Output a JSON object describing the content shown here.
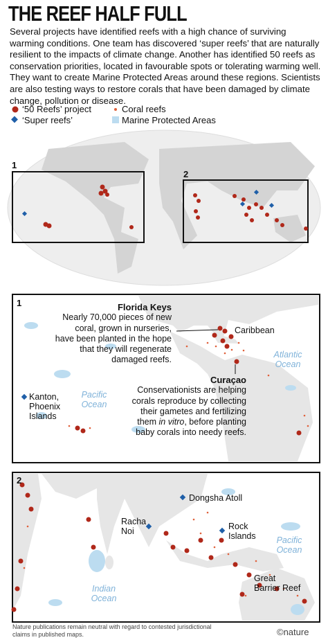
{
  "header": {
    "title": "THE REEF HALF FULL",
    "intro": "Several projects have identified reefs with a high chance of surviving warming conditions. One team has discovered ‘super reefs’ that are naturally resilient to the impacts of climate change. Another has identified 50 reefs as conservation priorities, located in favourable spots or tolerating warming well. They want to create Marine Protected Areas around these regions. Scientists are also testing ways to restore corals that have been damaged by climate change, pollution or disease."
  },
  "legend": {
    "items": [
      "‘50 Reefs’ project",
      "Coral reefs",
      "‘Super reefs’",
      "Marine Protected Areas"
    ]
  },
  "world_map": {
    "insets": [
      "1",
      "2"
    ]
  },
  "panel_1": {
    "number": "1",
    "places": [
      "Caribbean",
      "Atlantic Ocean",
      "Pacific Ocean",
      "Kanton, Phoenix Islands"
    ],
    "florida_keys": {
      "title": "Florida Keys",
      "text": "Nearly 70,000 pieces of new coral, grown in nurseries, have been planted in the hope that they will regenerate damaged reefs."
    },
    "curacao": {
      "title": "Curaçao",
      "text_before": "Conservationists are helping corals reproduce by collecting their gametes and fertilizing them ",
      "text_italic": "in vitro",
      "text_after": ", before planting baby corals into needy reefs."
    }
  },
  "panel_2": {
    "number": "2",
    "places": [
      "Dongsha Atoll",
      "Racha Noi",
      "Rock Islands",
      "Pacific Ocean",
      "Indian Ocean",
      "Great Barrier Reef"
    ]
  },
  "footer": {
    "note": "Nature publications remain neutral with regard to contested jurisdictional claims in published maps.",
    "brand": "©nature"
  }
}
